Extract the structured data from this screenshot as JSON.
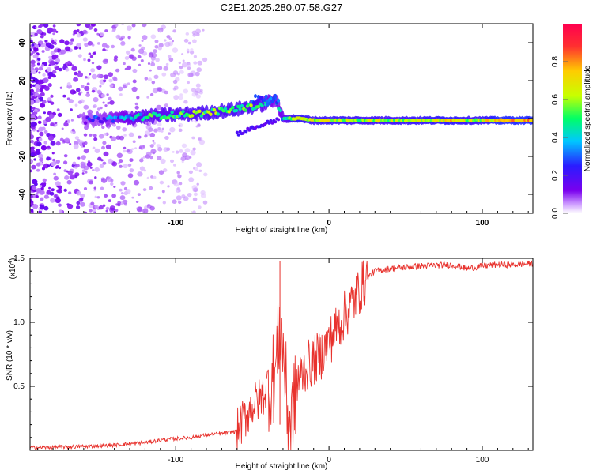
{
  "figure": {
    "title": "C2E1.2025.280.07.58.G27"
  },
  "chart_data": [
    {
      "type": "heatmap",
      "title": "C2E1.2025.280.07.58.G27",
      "xlabel": "Height of straight line (km)",
      "ylabel": "Frequency (Hz)",
      "xlim": [
        -195,
        133
      ],
      "ylim": [
        -50,
        50
      ],
      "xticks": [
        -100,
        0,
        100
      ],
      "xtick_labels": [
        "-100",
        "0",
        "100"
      ],
      "yticks": [
        -40,
        -20,
        0,
        20,
        40
      ],
      "ytick_labels": [
        "-40",
        "-20",
        "0",
        "20",
        "40"
      ],
      "colorbar": {
        "label": "Normalized spectral amplitude",
        "range": [
          0,
          1
        ],
        "ticks": [
          0.0,
          0.2,
          0.4,
          0.6,
          0.8
        ],
        "tick_labels": [
          "0.0",
          "0.2",
          "0.4",
          "0.6",
          "0.8"
        ],
        "colormap": "rainbow (white-violet-blue-cyan-green-yellow-red)",
        "stops": [
          "#ffffff",
          "#cc99ff",
          "#7a00ee",
          "#2a1cff",
          "#00c8ff",
          "#00ff66",
          "#c8ff00",
          "#ffcc00",
          "#ff3030",
          "#ff0050"
        ]
      },
      "ridge": {
        "x": [
          -160,
          -140,
          -120,
          -100,
          -80,
          -60,
          -45,
          -35,
          -30,
          -20,
          -10,
          0,
          20,
          40,
          60,
          80,
          95,
          110,
          133
        ],
        "freq": [
          -1,
          0,
          1,
          2,
          3,
          5,
          7,
          10,
          0,
          0,
          -1,
          -1,
          -1,
          -1,
          -1,
          -1,
          -1,
          -1,
          -1
        ],
        "amplitude": [
          0.2,
          0.3,
          0.45,
          0.5,
          0.55,
          0.55,
          0.5,
          0.3,
          0.4,
          0.7,
          0.6,
          0.65,
          0.6,
          0.6,
          0.65,
          0.7,
          0.6,
          0.75,
          0.75
        ]
      },
      "noise_region_xlim": [
        -195,
        -80
      ]
    },
    {
      "type": "line",
      "xlabel": "Height of straight line (km)",
      "ylabel": "SNR (10 * v/v)",
      "multiplier_label": "(x10",
      "multiplier_exp": "4",
      "multiplier_close": ")",
      "xlim": [
        -195,
        133
      ],
      "ylim": [
        0,
        1.5
      ],
      "xticks": [
        -100,
        0,
        100
      ],
      "xtick_labels": [
        "-100",
        "0",
        "100"
      ],
      "yticks": [
        0.5,
        1.0,
        1.5
      ],
      "ytick_labels": [
        "0.5",
        "1.0",
        "1.5"
      ],
      "series": [
        {
          "name": "SNR",
          "color": "#e8322d",
          "x": [
            -195,
            -160,
            -140,
            -120,
            -110,
            -100,
            -90,
            -80,
            -70,
            -60,
            -55,
            -50,
            -45,
            -40,
            -35,
            -32,
            -30,
            -27,
            -25,
            -22,
            -20,
            -15,
            -10,
            -5,
            0,
            5,
            10,
            15,
            20,
            25,
            30,
            40,
            60,
            80,
            90,
            100,
            110,
            120,
            133
          ],
          "y": [
            0.02,
            0.03,
            0.04,
            0.06,
            0.08,
            0.09,
            0.1,
            0.12,
            0.13,
            0.15,
            0.25,
            0.35,
            0.4,
            0.5,
            0.6,
            1.0,
            0.8,
            0.3,
            0.2,
            0.4,
            0.55,
            0.65,
            0.7,
            0.75,
            0.85,
            0.95,
            1.05,
            1.15,
            1.25,
            1.35,
            1.4,
            1.42,
            1.44,
            1.45,
            1.42,
            1.44,
            1.45,
            1.45,
            1.46
          ]
        }
      ]
    }
  ]
}
